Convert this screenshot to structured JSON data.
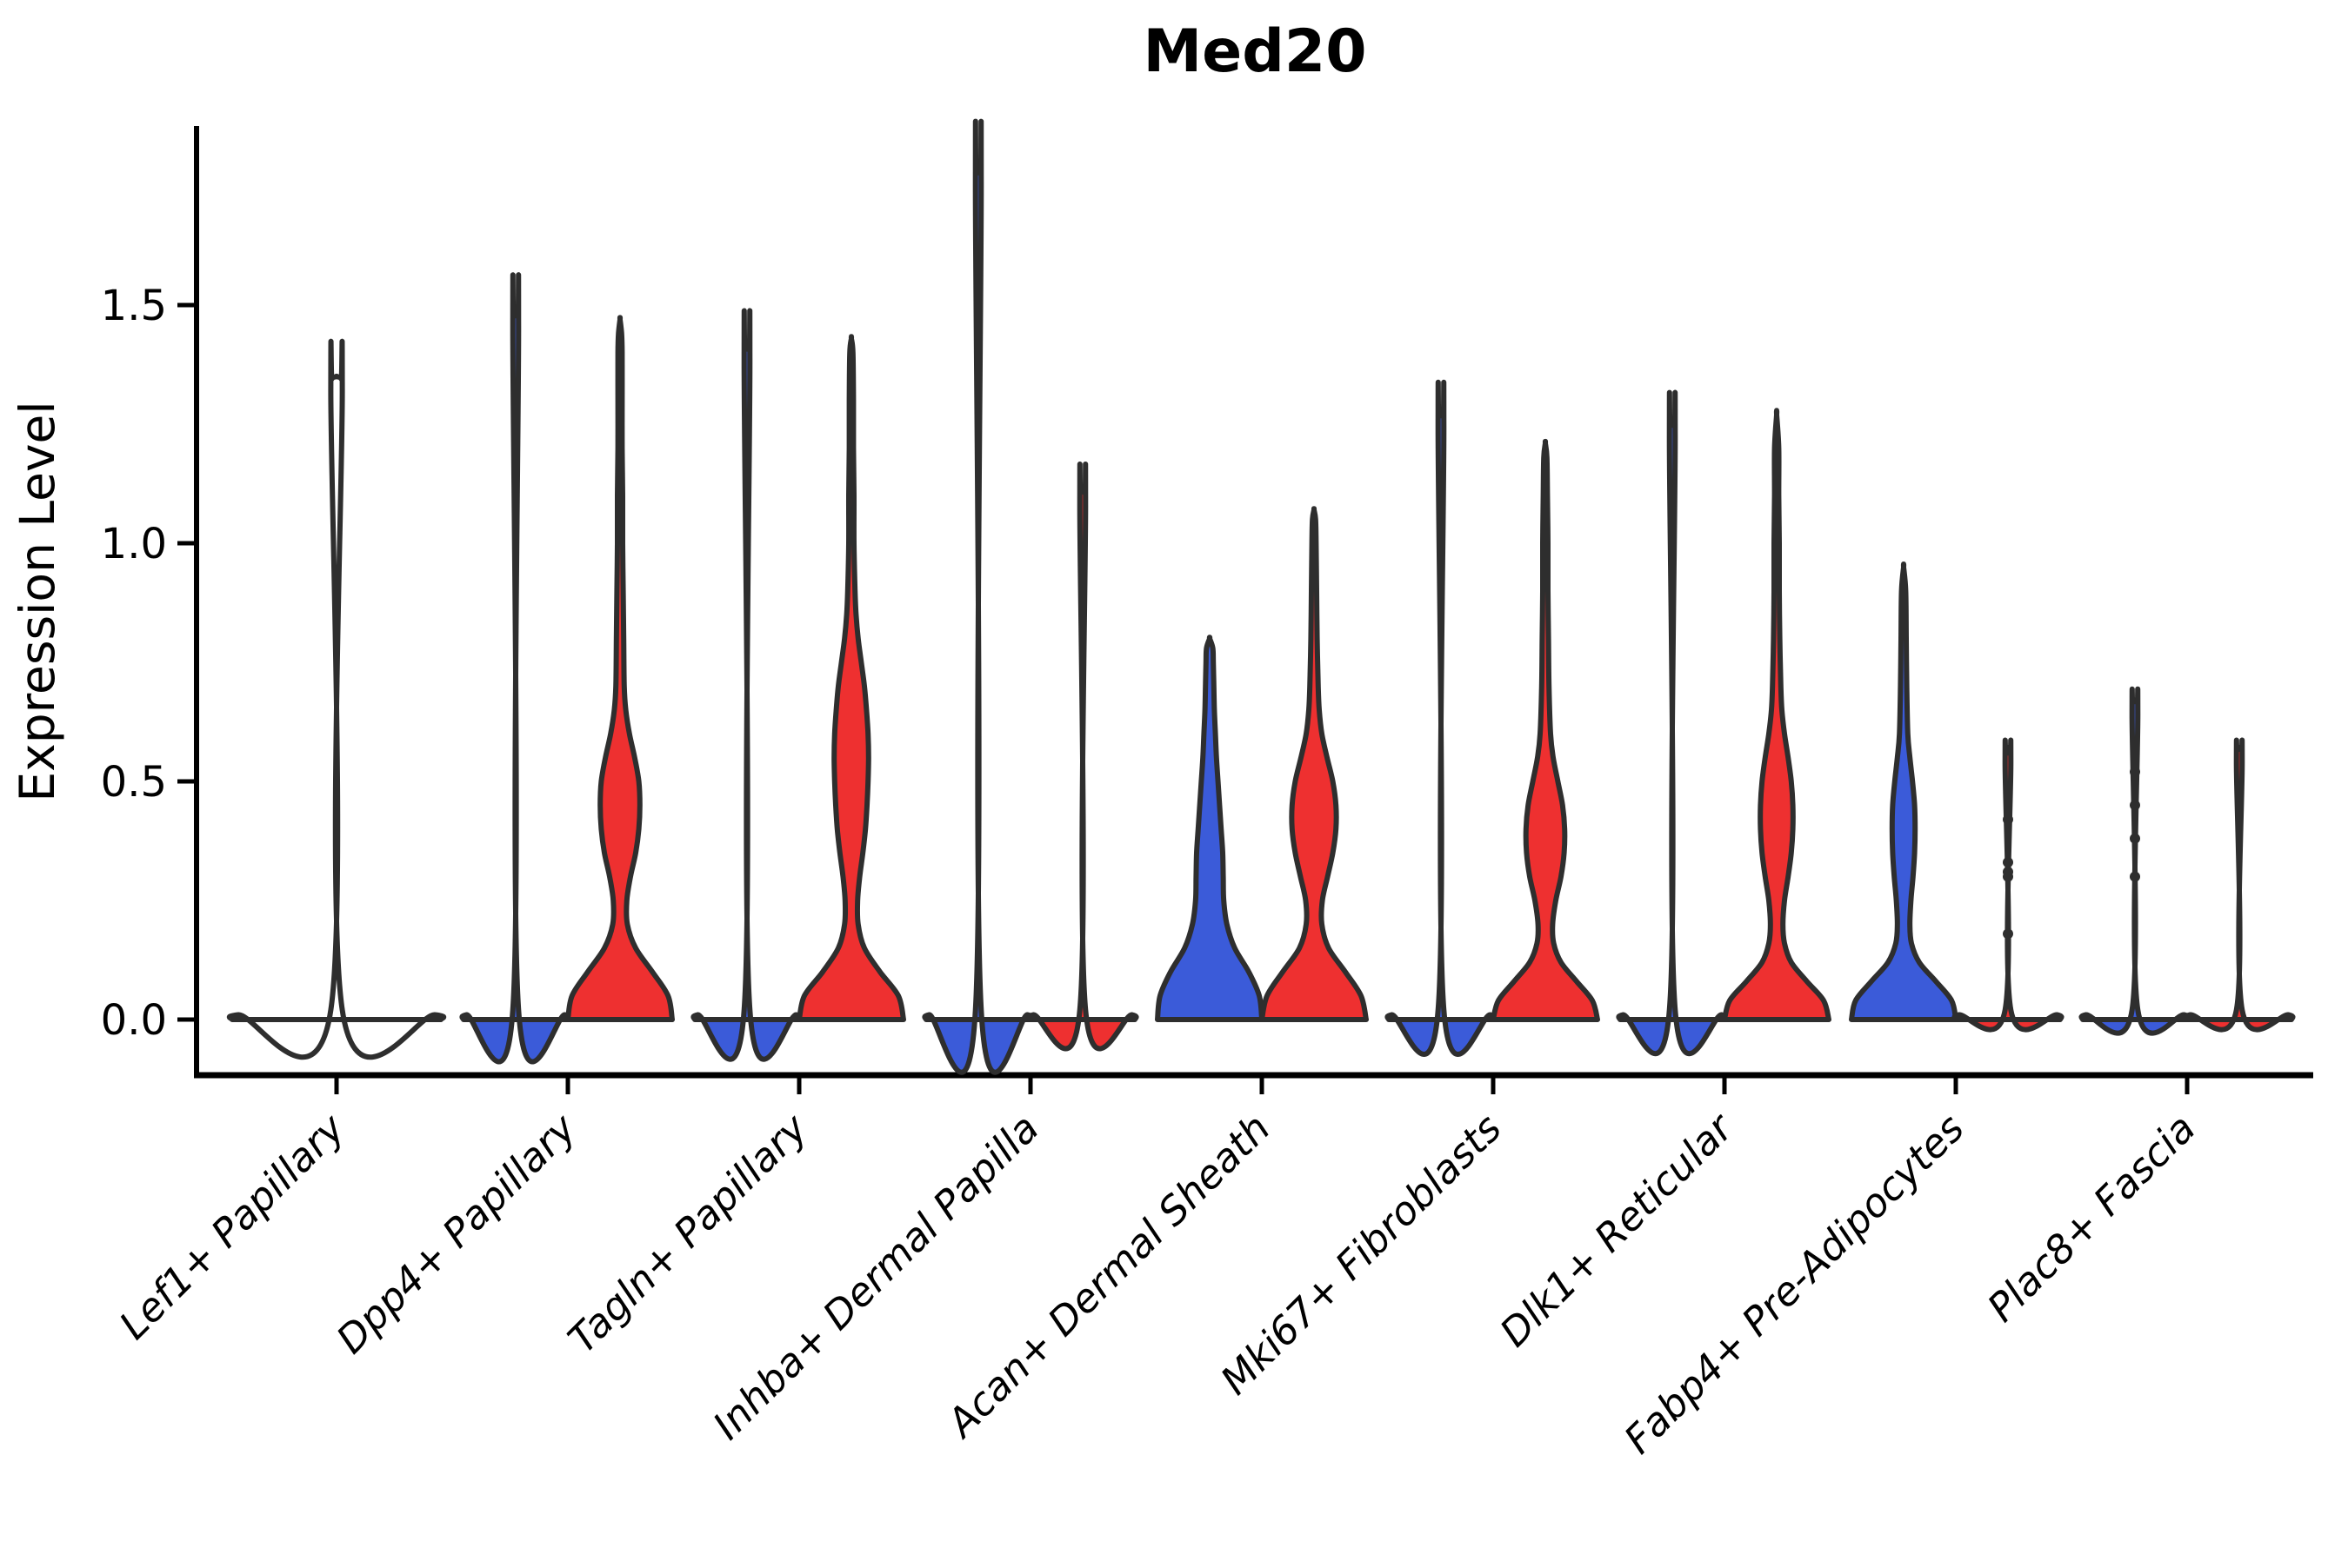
{
  "title": "Med20",
  "axes": {
    "ylabel": "Expression Level",
    "ytick_labels": [
      "0.0",
      "0.5",
      "1.0",
      "1.5"
    ]
  },
  "chart_data": {
    "type": "violin",
    "title": "Med20",
    "xlabel": "",
    "ylabel": "Expression Level",
    "ylim": [
      -0.06,
      1.9
    ],
    "yticks": [
      0.0,
      0.5,
      1.0,
      1.5
    ],
    "legend": "none",
    "grid": false,
    "hue_colors": {
      "left": "#3B5BD9",
      "right": "#EE3030",
      "outline": "#2E2E2E"
    },
    "categories": [
      "Lef1+ Papillary",
      "Dpp4+ Papillary",
      "Tagln+ Papillary",
      "Inhba+ Dermal Papilla",
      "Acan+ Dermal Sheath",
      "Mki67+ Fibroblasts",
      "Dlk1+ Reticular",
      "Fabp4+ Pre-Adipocytes",
      "Plac8+ Fascia"
    ],
    "groups": [
      {
        "category": "Lef1+ Papillary",
        "violins": [
          {
            "pos": "center",
            "color": null,
            "width_scale": 2.0,
            "kind": "flat_spike",
            "top": 1.35,
            "dots": []
          }
        ]
      },
      {
        "category": "Dpp4+ Papillary",
        "violins": [
          {
            "pos": "left",
            "color": "#3B5BD9",
            "width_scale": 1.0,
            "kind": "flat_spike",
            "top": 1.48,
            "dots": []
          },
          {
            "pos": "right",
            "color": "#EE3030",
            "width_scale": 1.0,
            "kind": "body",
            "top": 1.47,
            "dots": [],
            "profile": [
              [
                0,
                1.0
              ],
              [
                0.05,
                0.92
              ],
              [
                0.1,
                0.62
              ],
              [
                0.15,
                0.3
              ],
              [
                0.2,
                0.14
              ],
              [
                0.25,
                0.13
              ],
              [
                0.3,
                0.2
              ],
              [
                0.35,
                0.3
              ],
              [
                0.4,
                0.36
              ],
              [
                0.45,
                0.38
              ],
              [
                0.5,
                0.36
              ],
              [
                0.55,
                0.28
              ],
              [
                0.6,
                0.18
              ],
              [
                0.65,
                0.11
              ],
              [
                0.7,
                0.08
              ],
              [
                0.8,
                0.07
              ],
              [
                0.9,
                0.06
              ],
              [
                1.0,
                0.05
              ],
              [
                1.1,
                0.05
              ],
              [
                1.2,
                0.04
              ],
              [
                1.3,
                0.04
              ],
              [
                1.4,
                0.04
              ],
              [
                1.44,
                0.03
              ],
              [
                1.47,
                0.0
              ]
            ]
          }
        ]
      },
      {
        "category": "Tagln+ Papillary",
        "violins": [
          {
            "pos": "left",
            "color": "#3B5BD9",
            "width_scale": 1.0,
            "kind": "flat_spike",
            "top": 1.41,
            "dots": []
          },
          {
            "pos": "right",
            "color": "#EE3030",
            "width_scale": 1.0,
            "kind": "body",
            "top": 1.43,
            "dots": [],
            "profile": [
              [
                0,
                1.0
              ],
              [
                0.05,
                0.9
              ],
              [
                0.1,
                0.55
              ],
              [
                0.15,
                0.25
              ],
              [
                0.2,
                0.13
              ],
              [
                0.25,
                0.12
              ],
              [
                0.3,
                0.16
              ],
              [
                0.35,
                0.22
              ],
              [
                0.4,
                0.27
              ],
              [
                0.45,
                0.3
              ],
              [
                0.5,
                0.32
              ],
              [
                0.55,
                0.33
              ],
              [
                0.6,
                0.32
              ],
              [
                0.65,
                0.29
              ],
              [
                0.7,
                0.25
              ],
              [
                0.75,
                0.19
              ],
              [
                0.8,
                0.13
              ],
              [
                0.85,
                0.09
              ],
              [
                0.9,
                0.07
              ],
              [
                1.0,
                0.05
              ],
              [
                1.1,
                0.05
              ],
              [
                1.2,
                0.04
              ],
              [
                1.3,
                0.04
              ],
              [
                1.4,
                0.03
              ],
              [
                1.43,
                0.0
              ]
            ]
          }
        ]
      },
      {
        "category": "Inhba+ Dermal Papilla",
        "violins": [
          {
            "pos": "left",
            "color": "#3B5BD9",
            "width_scale": 1.0,
            "kind": "flat_spike",
            "top": 1.78,
            "dots": []
          },
          {
            "pos": "right",
            "color": "#EE3030",
            "width_scale": 1.0,
            "kind": "flat_spike",
            "top": 1.11,
            "dots": []
          }
        ]
      },
      {
        "category": "Acan+ Dermal Sheath",
        "violins": [
          {
            "pos": "left",
            "color": "#3B5BD9",
            "width_scale": 1.0,
            "kind": "body",
            "top": 0.8,
            "dots": [],
            "profile": [
              [
                0,
                1.0
              ],
              [
                0.05,
                0.95
              ],
              [
                0.1,
                0.75
              ],
              [
                0.15,
                0.48
              ],
              [
                0.2,
                0.33
              ],
              [
                0.25,
                0.27
              ],
              [
                0.3,
                0.26
              ],
              [
                0.35,
                0.25
              ],
              [
                0.4,
                0.22
              ],
              [
                0.45,
                0.19
              ],
              [
                0.5,
                0.16
              ],
              [
                0.55,
                0.13
              ],
              [
                0.6,
                0.11
              ],
              [
                0.65,
                0.09
              ],
              [
                0.7,
                0.08
              ],
              [
                0.75,
                0.07
              ],
              [
                0.78,
                0.06
              ],
              [
                0.8,
                0.0
              ]
            ]
          },
          {
            "pos": "right",
            "color": "#EE3030",
            "width_scale": 1.0,
            "kind": "body",
            "top": 1.07,
            "dots": [],
            "profile": [
              [
                0,
                1.0
              ],
              [
                0.05,
                0.9
              ],
              [
                0.1,
                0.6
              ],
              [
                0.15,
                0.28
              ],
              [
                0.2,
                0.15
              ],
              [
                0.25,
                0.16
              ],
              [
                0.3,
                0.26
              ],
              [
                0.35,
                0.36
              ],
              [
                0.4,
                0.42
              ],
              [
                0.45,
                0.42
              ],
              [
                0.5,
                0.36
              ],
              [
                0.55,
                0.25
              ],
              [
                0.6,
                0.15
              ],
              [
                0.65,
                0.1
              ],
              [
                0.7,
                0.08
              ],
              [
                0.8,
                0.06
              ],
              [
                0.9,
                0.05
              ],
              [
                1.0,
                0.04
              ],
              [
                1.05,
                0.03
              ],
              [
                1.07,
                0.0
              ]
            ]
          }
        ]
      },
      {
        "category": "Mki67+ Fibroblasts",
        "violins": [
          {
            "pos": "left",
            "color": "#3B5BD9",
            "width_scale": 1.0,
            "kind": "flat_spike",
            "top": 1.27,
            "dots": []
          },
          {
            "pos": "right",
            "color": "#EE3030",
            "width_scale": 1.0,
            "kind": "body",
            "top": 1.21,
            "dots": [],
            "profile": [
              [
                0,
                1.0
              ],
              [
                0.04,
                0.9
              ],
              [
                0.08,
                0.6
              ],
              [
                0.12,
                0.3
              ],
              [
                0.16,
                0.16
              ],
              [
                0.2,
                0.14
              ],
              [
                0.25,
                0.2
              ],
              [
                0.3,
                0.3
              ],
              [
                0.35,
                0.36
              ],
              [
                0.4,
                0.37
              ],
              [
                0.45,
                0.33
              ],
              [
                0.5,
                0.24
              ],
              [
                0.55,
                0.15
              ],
              [
                0.6,
                0.1
              ],
              [
                0.7,
                0.07
              ],
              [
                0.8,
                0.06
              ],
              [
                0.9,
                0.05
              ],
              [
                1.0,
                0.05
              ],
              [
                1.1,
                0.04
              ],
              [
                1.18,
                0.03
              ],
              [
                1.21,
                0.0
              ]
            ]
          }
        ]
      },
      {
        "category": "Dlk1+ Reticular",
        "violins": [
          {
            "pos": "left",
            "color": "#3B5BD9",
            "width_scale": 1.0,
            "kind": "flat_spike",
            "top": 1.25,
            "dots": []
          },
          {
            "pos": "right",
            "color": "#EE3030",
            "width_scale": 1.0,
            "kind": "body",
            "top": 1.27,
            "dots": [],
            "profile": [
              [
                0,
                1.0
              ],
              [
                0.04,
                0.9
              ],
              [
                0.08,
                0.58
              ],
              [
                0.12,
                0.28
              ],
              [
                0.16,
                0.15
              ],
              [
                0.2,
                0.12
              ],
              [
                0.25,
                0.15
              ],
              [
                0.3,
                0.22
              ],
              [
                0.35,
                0.28
              ],
              [
                0.4,
                0.31
              ],
              [
                0.45,
                0.31
              ],
              [
                0.5,
                0.28
              ],
              [
                0.55,
                0.22
              ],
              [
                0.6,
                0.15
              ],
              [
                0.65,
                0.1
              ],
              [
                0.7,
                0.08
              ],
              [
                0.8,
                0.06
              ],
              [
                0.9,
                0.05
              ],
              [
                1.0,
                0.05
              ],
              [
                1.1,
                0.04
              ],
              [
                1.2,
                0.04
              ],
              [
                1.27,
                0.0
              ]
            ]
          }
        ]
      },
      {
        "category": "Fabp4+ Pre-Adipocytes",
        "violins": [
          {
            "pos": "left",
            "color": "#3B5BD9",
            "width_scale": 1.0,
            "kind": "body",
            "top": 0.95,
            "dots": [],
            "profile": [
              [
                0,
                1.0
              ],
              [
                0.04,
                0.92
              ],
              [
                0.08,
                0.62
              ],
              [
                0.12,
                0.3
              ],
              [
                0.16,
                0.15
              ],
              [
                0.2,
                0.12
              ],
              [
                0.25,
                0.14
              ],
              [
                0.3,
                0.18
              ],
              [
                0.35,
                0.21
              ],
              [
                0.4,
                0.22
              ],
              [
                0.45,
                0.21
              ],
              [
                0.5,
                0.17
              ],
              [
                0.55,
                0.12
              ],
              [
                0.6,
                0.08
              ],
              [
                0.7,
                0.06
              ],
              [
                0.8,
                0.05
              ],
              [
                0.9,
                0.04
              ],
              [
                0.95,
                0.0
              ]
            ]
          },
          {
            "pos": "right",
            "color": "#EE3030",
            "width_scale": 1.0,
            "kind": "flat_spike",
            "top": 0.57,
            "dots": [
              0.565,
              0.42,
              0.33,
              0.31,
              0.3,
              0.18
            ]
          }
        ]
      },
      {
        "category": "Plac8+ Fascia",
        "violins": [
          {
            "pos": "left",
            "color": "#3B5BD9",
            "width_scale": 1.0,
            "kind": "flat_spike",
            "top": 0.67,
            "dots": [
              0.52,
              0.45,
              0.38,
              0.3
            ]
          },
          {
            "pos": "right",
            "color": "#EE3030",
            "width_scale": 1.0,
            "kind": "flat_spike",
            "top": 0.57,
            "dots": []
          }
        ]
      }
    ]
  }
}
